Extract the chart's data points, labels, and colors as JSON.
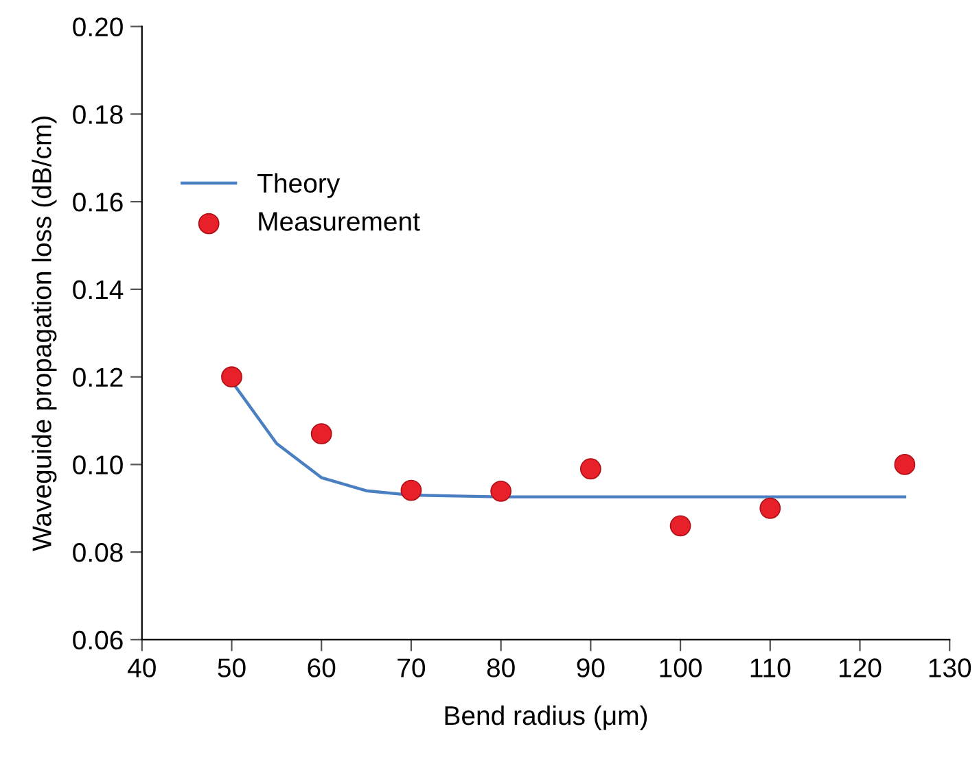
{
  "chart_data": {
    "type": "line",
    "xlabel": "Bend radius (μm)",
    "ylabel": "Waveguide propagation loss (dB/cm)",
    "xlim": [
      40,
      130
    ],
    "xticks": [
      40,
      50,
      60,
      70,
      80,
      90,
      100,
      110,
      120,
      130
    ],
    "ylim": [
      0.06,
      0.2
    ],
    "yticks": [
      {
        "value": 0.06,
        "label": "0.06"
      },
      {
        "value": 0.08,
        "label": "0.08"
      },
      {
        "value": 0.1,
        "label": "0.10"
      },
      {
        "value": 0.12,
        "label": "0.12"
      },
      {
        "value": 0.14,
        "label": "0.14"
      },
      {
        "value": 0.16,
        "label": "0.16"
      },
      {
        "value": 0.18,
        "label": "0.18"
      },
      {
        "value": 0.2,
        "label": "0.20"
      }
    ],
    "grid": false,
    "legend": "top left",
    "series": [
      {
        "name": "Theory",
        "color": "#4a7fc1",
        "marker": "none",
        "x": [
          50,
          55,
          60,
          65,
          70,
          75,
          80,
          90,
          100,
          110,
          125
        ],
        "values": [
          0.119,
          0.1048,
          0.097,
          0.094,
          0.093,
          0.0928,
          0.0926,
          0.0926,
          0.0926,
          0.0926,
          0.0926
        ]
      },
      {
        "name": "Measurement",
        "type": "scatter",
        "color": "#e8202a",
        "marker": "circle",
        "x": [
          50,
          60,
          70,
          80,
          90,
          100,
          110,
          125
        ],
        "values": [
          0.12,
          0.107,
          0.0941,
          0.0939,
          0.099,
          0.086,
          0.09,
          0.1
        ]
      }
    ]
  }
}
